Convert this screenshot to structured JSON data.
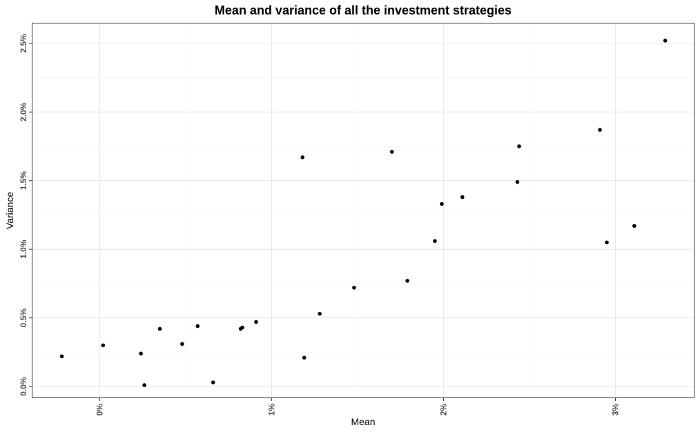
{
  "chart_data": {
    "type": "scatter",
    "title": "Mean and variance of all the investment strategies",
    "xlabel": "Mean",
    "ylabel": "Variance",
    "xlim": [
      -0.00395,
      0.0346
    ],
    "ylim": [
      -0.00085,
      0.0265
    ],
    "x_ticks": [
      {
        "value": 0.0,
        "label": "0%"
      },
      {
        "value": 0.01,
        "label": "1%"
      },
      {
        "value": 0.02,
        "label": "2%"
      },
      {
        "value": 0.03,
        "label": "3%"
      }
    ],
    "y_ticks": [
      {
        "value": 0.0,
        "label": "0.0%"
      },
      {
        "value": 0.005,
        "label": "0.5%"
      },
      {
        "value": 0.01,
        "label": "1.0%"
      },
      {
        "value": 0.015,
        "label": "1.5%"
      },
      {
        "value": 0.02,
        "label": "2.0%"
      },
      {
        "value": 0.025,
        "label": "2.5%"
      }
    ],
    "grid": true,
    "point_color": "#000000",
    "points": [
      {
        "x": -0.0022,
        "y": 0.0022
      },
      {
        "x": 0.0002,
        "y": 0.003
      },
      {
        "x": 0.0024,
        "y": 0.0024
      },
      {
        "x": 0.0026,
        "y": 0.0001
      },
      {
        "x": 0.0035,
        "y": 0.0042
      },
      {
        "x": 0.0048,
        "y": 0.0031
      },
      {
        "x": 0.0057,
        "y": 0.0044
      },
      {
        "x": 0.0066,
        "y": 0.0003
      },
      {
        "x": 0.0082,
        "y": 0.0042
      },
      {
        "x": 0.0083,
        "y": 0.0043
      },
      {
        "x": 0.0091,
        "y": 0.0047
      },
      {
        "x": 0.0118,
        "y": 0.0167
      },
      {
        "x": 0.0119,
        "y": 0.0021
      },
      {
        "x": 0.0128,
        "y": 0.0053
      },
      {
        "x": 0.0148,
        "y": 0.0072
      },
      {
        "x": 0.017,
        "y": 0.0171
      },
      {
        "x": 0.0179,
        "y": 0.0077
      },
      {
        "x": 0.0195,
        "y": 0.0106
      },
      {
        "x": 0.0199,
        "y": 0.0133
      },
      {
        "x": 0.0211,
        "y": 0.0138
      },
      {
        "x": 0.0243,
        "y": 0.0149
      },
      {
        "x": 0.0244,
        "y": 0.0175
      },
      {
        "x": 0.0291,
        "y": 0.0187
      },
      {
        "x": 0.0295,
        "y": 0.0105
      },
      {
        "x": 0.0311,
        "y": 0.0117
      },
      {
        "x": 0.0329,
        "y": 0.0252
      }
    ]
  }
}
